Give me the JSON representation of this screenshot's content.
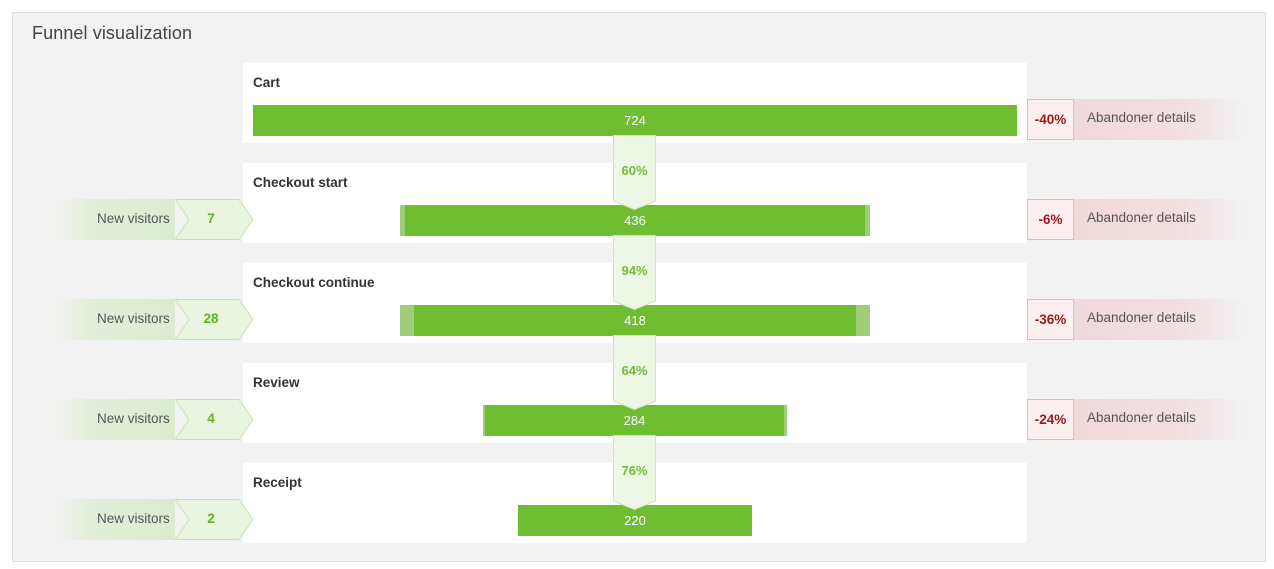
{
  "panel": {
    "title": "Funnel visualization"
  },
  "stages": [
    {
      "label": "Cart",
      "value": "724"
    },
    {
      "label": "Checkout start",
      "value": "436"
    },
    {
      "label": "Checkout continue",
      "value": "418"
    },
    {
      "label": "Review",
      "value": "284"
    },
    {
      "label": "Receipt",
      "value": "220"
    }
  ],
  "conversions": [
    "60%",
    "94%",
    "64%",
    "76%"
  ],
  "new_visitors": [
    {
      "label": "New visitors",
      "count": "7"
    },
    {
      "label": "New visitors",
      "count": "28"
    },
    {
      "label": "New visitors",
      "count": "4"
    },
    {
      "label": "New visitors",
      "count": "2"
    }
  ],
  "abandoners": [
    {
      "pct": "-40%",
      "label": "Abandoner details"
    },
    {
      "pct": "-6%",
      "label": "Abandoner details"
    },
    {
      "pct": "-36%",
      "label": "Abandoner details"
    },
    {
      "pct": "-24%",
      "label": "Abandoner details"
    }
  ],
  "colors": {
    "bar": "#6fbe31",
    "bar_light": "#9fcd7b",
    "conversion_text": "#72bd34",
    "abandon_text": "#9b1b1b",
    "new_visitor_count": "#5fb320"
  }
}
